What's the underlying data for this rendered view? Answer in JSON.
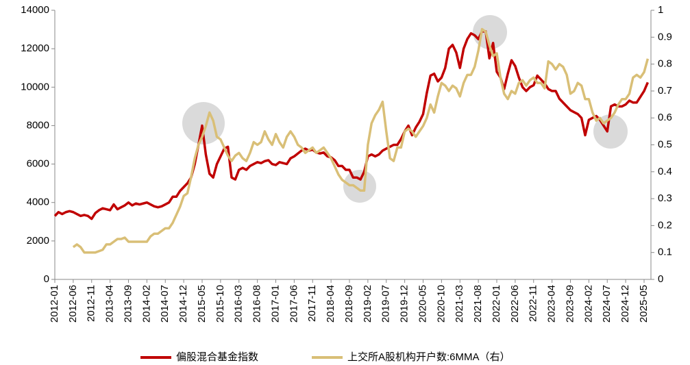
{
  "chart_data": {
    "type": "line",
    "categories": [
      "2012-01",
      null,
      null,
      null,
      null,
      "2012-06",
      null,
      null,
      null,
      null,
      "2012-11",
      null,
      null,
      null,
      null,
      "2013-04",
      null,
      null,
      null,
      null,
      "2013-09",
      null,
      null,
      null,
      null,
      "2014-02",
      null,
      null,
      null,
      null,
      "2014-07",
      null,
      null,
      null,
      null,
      "2014-12",
      null,
      null,
      null,
      null,
      "2015-05",
      null,
      null,
      null,
      null,
      "2015-10",
      null,
      null,
      null,
      null,
      "2016-03",
      null,
      null,
      null,
      null,
      "2016-08",
      null,
      null,
      null,
      null,
      "2017-01",
      null,
      null,
      null,
      null,
      "2017-06",
      null,
      null,
      null,
      null,
      "2017-11",
      null,
      null,
      null,
      null,
      "2018-04",
      null,
      null,
      null,
      null,
      "2018-09",
      null,
      null,
      null,
      null,
      "2019-02",
      null,
      null,
      null,
      null,
      "2019-07",
      null,
      null,
      null,
      null,
      "2019-12",
      null,
      null,
      null,
      null,
      "2020-05",
      null,
      null,
      null,
      null,
      "2020-10",
      null,
      null,
      null,
      null,
      "2021-03",
      null,
      null,
      null,
      null,
      "2021-08",
      null,
      null,
      null,
      null,
      "2022-01",
      null,
      null,
      null,
      null,
      "2022-06",
      null,
      null,
      null,
      null,
      "2022-11",
      null,
      null,
      null,
      null,
      "2023-04",
      null,
      null,
      null,
      null,
      "2023-09",
      null,
      null,
      null,
      null,
      "2024-02",
      null,
      null,
      null,
      null,
      "2024-07",
      null,
      null,
      null,
      null,
      "2024-12",
      null,
      null,
      null,
      null,
      "2025-05",
      null
    ],
    "series": [
      {
        "name": "偏股混合基金指数",
        "color": "#c00000",
        "axis": "y",
        "values": [
          3300,
          3500,
          3400,
          3500,
          3550,
          3500,
          3400,
          3300,
          3350,
          3300,
          3150,
          3450,
          3600,
          3700,
          3650,
          3600,
          3900,
          3650,
          3750,
          3850,
          4000,
          3850,
          3950,
          3900,
          3950,
          4000,
          3900,
          3800,
          3750,
          3800,
          3900,
          4000,
          4300,
          4300,
          4600,
          4800,
          5000,
          5300,
          6000,
          7000,
          8000,
          6500,
          5500,
          5300,
          6000,
          6400,
          6800,
          6900,
          5300,
          5200,
          5700,
          5800,
          5700,
          5900,
          6000,
          6100,
          6050,
          6150,
          6200,
          6000,
          5950,
          6100,
          6050,
          6000,
          6300,
          6400,
          6550,
          6700,
          6800,
          6700,
          6750,
          6600,
          6550,
          6600,
          6400,
          6350,
          6200,
          5900,
          5900,
          5700,
          5700,
          5300,
          5300,
          5200,
          5600,
          6400,
          6500,
          6400,
          6500,
          6700,
          6800,
          6900,
          7000,
          7000,
          7300,
          7700,
          8000,
          7500,
          7900,
          8200,
          8600,
          9700,
          10600,
          10700,
          10300,
          10500,
          11000,
          12000,
          12200,
          11800,
          11000,
          12000,
          12500,
          12800,
          12700,
          12500,
          12900,
          12900,
          11500,
          12300,
          10800,
          10500,
          9900,
          10700,
          11400,
          11100,
          10500,
          10000,
          9800,
          10000,
          10100,
          10600,
          10400,
          10200,
          9900,
          9800,
          9800,
          9400,
          9200,
          9000,
          8800,
          8700,
          8600,
          8400,
          7500,
          8300,
          8400,
          8500,
          8300,
          8000,
          7700,
          9000,
          9100,
          9000,
          9000,
          9100,
          9300,
          9200,
          9200,
          9500,
          9800,
          10250
        ]
      },
      {
        "name": "上交所A股机构开户数:6MMA（右）",
        "color": "#d9bf77",
        "axis": "y2",
        "values": [
          null,
          null,
          null,
          null,
          null,
          0.12,
          0.13,
          0.12,
          0.1,
          0.1,
          0.1,
          0.1,
          0.105,
          0.11,
          0.13,
          0.13,
          0.14,
          0.15,
          0.15,
          0.155,
          0.14,
          0.14,
          0.14,
          0.14,
          0.14,
          0.14,
          0.16,
          0.17,
          0.17,
          0.18,
          0.19,
          0.19,
          0.21,
          0.24,
          0.27,
          0.31,
          0.32,
          0.38,
          0.45,
          0.5,
          0.53,
          0.57,
          0.62,
          0.59,
          0.53,
          0.52,
          0.49,
          0.46,
          0.44,
          0.46,
          0.47,
          0.45,
          0.44,
          0.47,
          0.51,
          0.5,
          0.51,
          0.55,
          0.52,
          0.5,
          0.54,
          0.51,
          0.49,
          0.53,
          0.55,
          0.53,
          0.5,
          0.49,
          0.47,
          0.48,
          0.49,
          0.47,
          0.48,
          0.49,
          0.47,
          0.45,
          0.42,
          0.39,
          0.37,
          0.36,
          0.35,
          0.35,
          0.34,
          0.33,
          0.33,
          0.5,
          0.58,
          0.61,
          0.63,
          0.66,
          0.55,
          0.45,
          0.44,
          0.49,
          0.49,
          0.55,
          0.56,
          0.55,
          0.53,
          0.55,
          0.57,
          0.6,
          0.65,
          0.62,
          0.68,
          0.73,
          0.72,
          0.7,
          0.72,
          0.71,
          0.68,
          0.73,
          0.76,
          0.76,
          0.79,
          0.85,
          0.93,
          0.92,
          0.87,
          0.83,
          0.84,
          0.75,
          0.69,
          0.67,
          0.7,
          0.69,
          0.73,
          0.74,
          0.72,
          0.74,
          0.75,
          0.73,
          0.73,
          0.71,
          0.81,
          0.8,
          0.78,
          0.8,
          0.79,
          0.76,
          0.69,
          0.7,
          0.73,
          0.72,
          0.67,
          0.67,
          0.62,
          0.59,
          0.6,
          0.58,
          0.59,
          0.6,
          0.62,
          0.65,
          0.67,
          0.67,
          0.69,
          0.75,
          0.76,
          0.75,
          0.77,
          0.82
        ]
      }
    ],
    "ylim": [
      0,
      14000
    ],
    "yticks": [
      0,
      2000,
      4000,
      6000,
      8000,
      10000,
      12000,
      14000
    ],
    "y2lim": [
      0,
      1
    ],
    "y2ticks": [
      0,
      0.1,
      0.2,
      0.3,
      0.4,
      0.5,
      0.6,
      0.7,
      0.8,
      0.9,
      1
    ]
  }
}
